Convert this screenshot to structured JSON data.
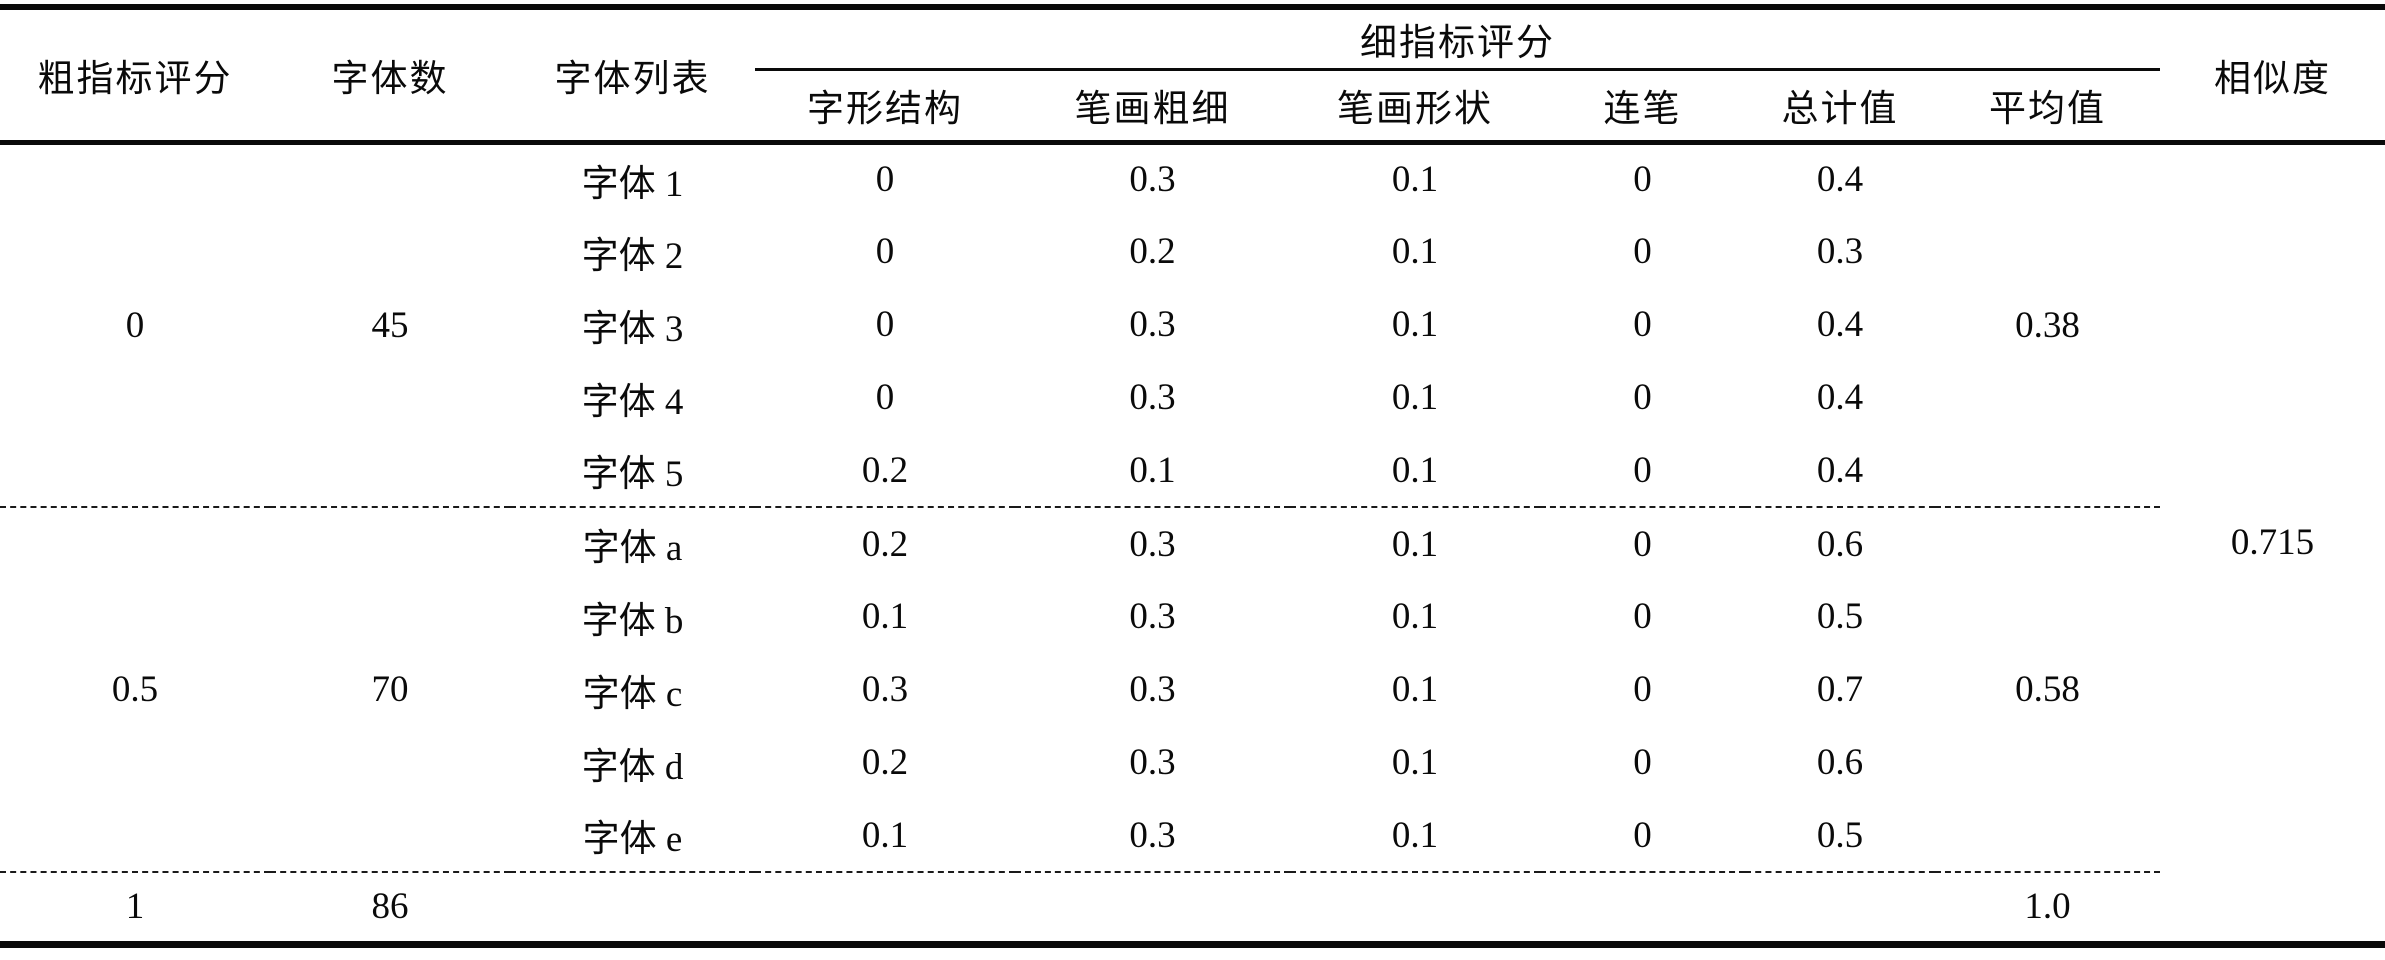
{
  "table": {
    "headers": {
      "coarse_score": "粗指标评分",
      "font_count": "字体数",
      "font_list": "字体列表",
      "fine_group": "细指标评分",
      "sub": [
        "字形结构",
        "笔画粗细",
        "笔画形状",
        "连笔",
        "总计值",
        "平均值"
      ],
      "similarity": "相似度"
    },
    "groups": [
      {
        "coarse_score": "0",
        "font_count": "45",
        "average": "0.38",
        "rows": [
          {
            "font": "字体 1",
            "values": [
              "0",
              "0.3",
              "0.1",
              "0",
              "0.4"
            ]
          },
          {
            "font": "字体 2",
            "values": [
              "0",
              "0.2",
              "0.1",
              "0",
              "0.3"
            ]
          },
          {
            "font": "字体 3",
            "values": [
              "0",
              "0.3",
              "0.1",
              "0",
              "0.4"
            ]
          },
          {
            "font": "字体 4",
            "values": [
              "0",
              "0.3",
              "0.1",
              "0",
              "0.4"
            ]
          },
          {
            "font": "字体 5",
            "values": [
              "0.2",
              "0.1",
              "0.1",
              "0",
              "0.4"
            ]
          }
        ]
      },
      {
        "coarse_score": "0.5",
        "font_count": "70",
        "average": "0.58",
        "rows": [
          {
            "font": "字体 a",
            "values": [
              "0.2",
              "0.3",
              "0.1",
              "0",
              "0.6"
            ]
          },
          {
            "font": "字体 b",
            "values": [
              "0.1",
              "0.3",
              "0.1",
              "0",
              "0.5"
            ]
          },
          {
            "font": "字体 c",
            "values": [
              "0.3",
              "0.3",
              "0.1",
              "0",
              "0.7"
            ]
          },
          {
            "font": "字体 d",
            "values": [
              "0.2",
              "0.3",
              "0.1",
              "0",
              "0.6"
            ]
          },
          {
            "font": "字体 e",
            "values": [
              "0.1",
              "0.3",
              "0.1",
              "0",
              "0.5"
            ]
          }
        ]
      },
      {
        "coarse_score": "1",
        "font_count": "86",
        "average": "1.0",
        "rows": []
      }
    ],
    "similarity_value": "0.715",
    "colors": {
      "ink": "#0a0a0a",
      "background": "#ffffff"
    }
  }
}
